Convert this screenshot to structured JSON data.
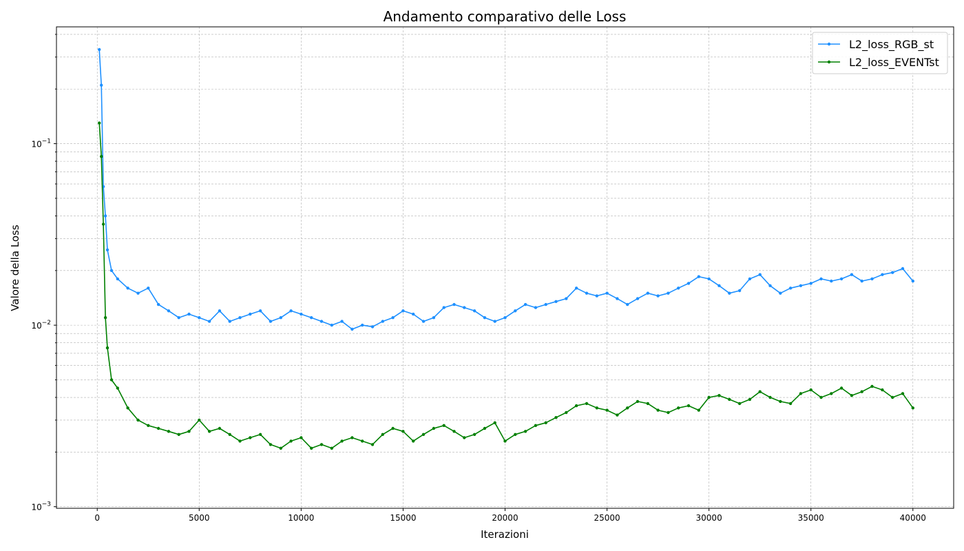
{
  "chart_data": {
    "type": "line",
    "title": "Andamento comparativo delle Loss",
    "xlabel": "Iterazioni",
    "ylabel": "Valore della Loss",
    "xlim": [
      -2000,
      42000
    ],
    "ylim": [
      0.00098,
      0.44
    ],
    "yscale": "log",
    "grid": true,
    "legend_position": "top-right",
    "x_ticks": [
      0,
      5000,
      10000,
      15000,
      20000,
      25000,
      30000,
      35000,
      40000
    ],
    "x_tick_labels": [
      "0",
      "5000",
      "10000",
      "15000",
      "20000",
      "25000",
      "30000",
      "35000",
      "40000"
    ],
    "y_ticks": [
      0.001,
      0.01,
      0.1
    ],
    "y_tick_base_labels": [
      "10",
      "10",
      "10"
    ],
    "y_tick_exponents": [
      "−3",
      "−2",
      "−1"
    ],
    "series": [
      {
        "name": "L2_loss_RGB_st",
        "color": "#1e90ff",
        "x": [
          100,
          200,
          300,
          400,
          500,
          700,
          1000,
          1500,
          2000,
          2500,
          3000,
          3500,
          4000,
          4500,
          5000,
          5500,
          6000,
          6500,
          7000,
          7500,
          8000,
          8500,
          9000,
          9500,
          10000,
          10500,
          11000,
          11500,
          12000,
          12500,
          13000,
          13500,
          14000,
          14500,
          15000,
          15500,
          16000,
          16500,
          17000,
          17500,
          18000,
          18500,
          19000,
          19500,
          20000,
          20500,
          21000,
          21500,
          22000,
          22500,
          23000,
          23500,
          24000,
          24500,
          25000,
          25500,
          26000,
          26500,
          27000,
          27500,
          28000,
          28500,
          29000,
          29500,
          30000,
          30500,
          31000,
          31500,
          32000,
          32500,
          33000,
          33500,
          34000,
          34500,
          35000,
          35500,
          36000,
          36500,
          37000,
          37500,
          38000,
          38500,
          39000,
          39500,
          40000
        ],
        "values": [
          0.33,
          0.21,
          0.058,
          0.04,
          0.026,
          0.02,
          0.018,
          0.016,
          0.015,
          0.016,
          0.013,
          0.012,
          0.011,
          0.0115,
          0.011,
          0.0105,
          0.012,
          0.0105,
          0.011,
          0.0115,
          0.012,
          0.0105,
          0.011,
          0.012,
          0.0115,
          0.011,
          0.0105,
          0.01,
          0.0105,
          0.0095,
          0.01,
          0.0098,
          0.0105,
          0.011,
          0.012,
          0.0115,
          0.0105,
          0.011,
          0.0125,
          0.013,
          0.0125,
          0.012,
          0.011,
          0.0105,
          0.011,
          0.012,
          0.013,
          0.0125,
          0.013,
          0.0135,
          0.014,
          0.016,
          0.015,
          0.0145,
          0.015,
          0.014,
          0.013,
          0.014,
          0.015,
          0.0145,
          0.015,
          0.016,
          0.017,
          0.0185,
          0.018,
          0.0165,
          0.015,
          0.0155,
          0.018,
          0.019,
          0.0165,
          0.015,
          0.016,
          0.0165,
          0.017,
          0.018,
          0.0175,
          0.018,
          0.019,
          0.0175,
          0.018,
          0.019,
          0.0195,
          0.0205,
          0.0175
        ],
        "marker": "circle"
      },
      {
        "name": "L2_loss_EVENTst",
        "color": "#008000",
        "x": [
          100,
          200,
          300,
          400,
          500,
          700,
          1000,
          1500,
          2000,
          2500,
          3000,
          3500,
          4000,
          4500,
          5000,
          5500,
          6000,
          6500,
          7000,
          7500,
          8000,
          8500,
          9000,
          9500,
          10000,
          10500,
          11000,
          11500,
          12000,
          12500,
          13000,
          13500,
          14000,
          14500,
          15000,
          15500,
          16000,
          16500,
          17000,
          17500,
          18000,
          18500,
          19000,
          19500,
          20000,
          20500,
          21000,
          21500,
          22000,
          22500,
          23000,
          23500,
          24000,
          24500,
          25000,
          25500,
          26000,
          26500,
          27000,
          27500,
          28000,
          28500,
          29000,
          29500,
          30000,
          30500,
          31000,
          31500,
          32000,
          32500,
          33000,
          33500,
          34000,
          34500,
          35000,
          35500,
          36000,
          36500,
          37000,
          37500,
          38000,
          38500,
          39000,
          39500,
          40000
        ],
        "values": [
          0.13,
          0.085,
          0.036,
          0.011,
          0.0075,
          0.005,
          0.0045,
          0.0035,
          0.003,
          0.0028,
          0.0027,
          0.0026,
          0.0025,
          0.0026,
          0.003,
          0.0026,
          0.0027,
          0.0025,
          0.0023,
          0.0024,
          0.0025,
          0.0022,
          0.0021,
          0.0023,
          0.0024,
          0.0021,
          0.0022,
          0.0021,
          0.0023,
          0.0024,
          0.0023,
          0.0022,
          0.0025,
          0.0027,
          0.0026,
          0.0023,
          0.0025,
          0.0027,
          0.0028,
          0.0026,
          0.0024,
          0.0025,
          0.0027,
          0.0029,
          0.0023,
          0.0025,
          0.0026,
          0.0028,
          0.0029,
          0.0031,
          0.0033,
          0.0036,
          0.0037,
          0.0035,
          0.0034,
          0.0032,
          0.0035,
          0.0038,
          0.0037,
          0.0034,
          0.0033,
          0.0035,
          0.0036,
          0.0034,
          0.004,
          0.0041,
          0.0039,
          0.0037,
          0.0039,
          0.0043,
          0.004,
          0.0038,
          0.0037,
          0.0042,
          0.0044,
          0.004,
          0.0042,
          0.0045,
          0.0041,
          0.0043,
          0.0046,
          0.0044,
          0.004,
          0.0042,
          0.0035
        ],
        "marker": "circle"
      }
    ]
  }
}
